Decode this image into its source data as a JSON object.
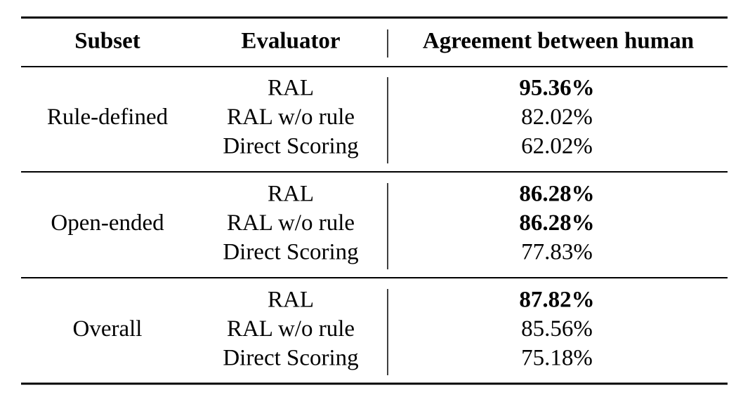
{
  "table": {
    "columns": [
      "Subset",
      "Evaluator",
      "Agreement between human"
    ],
    "groups": [
      {
        "subset": "Rule-defined",
        "rows": [
          {
            "evaluator": "RAL",
            "agreement": "95.36%",
            "bold": true
          },
          {
            "evaluator": "RAL w/o rule",
            "agreement": "82.02%",
            "bold": false
          },
          {
            "evaluator": "Direct Scoring",
            "agreement": "62.02%",
            "bold": false
          }
        ]
      },
      {
        "subset": "Open-ended",
        "rows": [
          {
            "evaluator": "RAL",
            "agreement": "86.28%",
            "bold": true
          },
          {
            "evaluator": "RAL w/o rule",
            "agreement": "86.28%",
            "bold": true
          },
          {
            "evaluator": "Direct Scoring",
            "agreement": "77.83%",
            "bold": false
          }
        ]
      },
      {
        "subset": "Overall",
        "rows": [
          {
            "evaluator": "RAL",
            "agreement": "87.82%",
            "bold": true
          },
          {
            "evaluator": "RAL w/o rule",
            "agreement": "85.56%",
            "bold": false
          },
          {
            "evaluator": "Direct Scoring",
            "agreement": "75.18%",
            "bold": false
          }
        ]
      }
    ]
  }
}
